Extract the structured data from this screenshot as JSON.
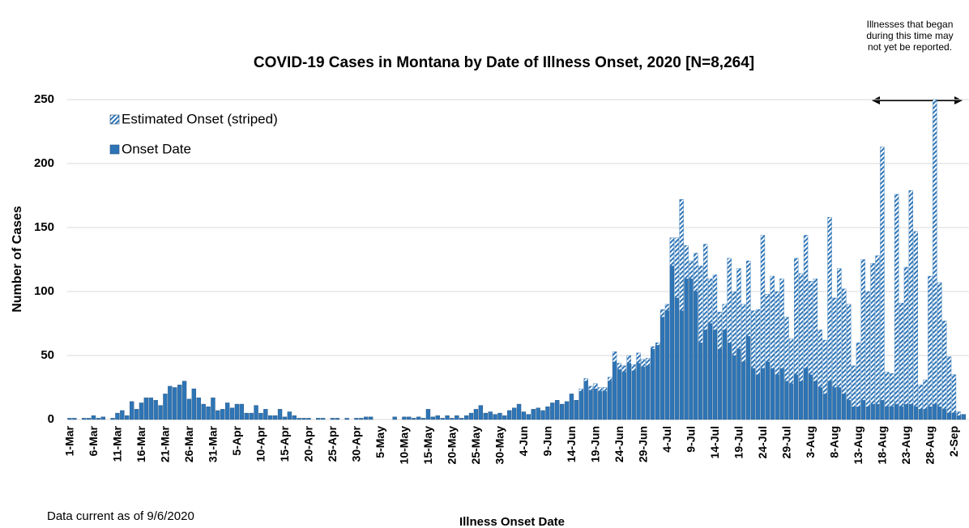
{
  "chart_data": {
    "type": "stacked-bar",
    "title": "COVID-19 Cases in Montana by Date of Illness Onset, 2020 [N=8,264]",
    "x_label": "Illness Onset Date",
    "y_label": "Number of Cases",
    "footnote": "Data current as of 9/6/2020",
    "annotation": [
      "Illnesses that began",
      "during this time may",
      "not yet be reported."
    ],
    "ylim": [
      0,
      250
    ],
    "yticks": [
      0,
      50,
      100,
      150,
      200,
      250
    ],
    "grid": true,
    "legend": "upper-left",
    "categories": [
      "1-Mar",
      null,
      null,
      null,
      null,
      "6-Mar",
      null,
      null,
      null,
      null,
      "11-Mar",
      null,
      null,
      null,
      null,
      "16-Mar",
      null,
      null,
      null,
      null,
      "21-Mar",
      null,
      null,
      null,
      null,
      "26-Mar",
      null,
      null,
      null,
      null,
      "31-Mar",
      null,
      null,
      null,
      null,
      "5-Apr",
      null,
      null,
      null,
      null,
      "10-Apr",
      null,
      null,
      null,
      null,
      "15-Apr",
      null,
      null,
      null,
      null,
      "20-Apr",
      null,
      null,
      null,
      null,
      "25-Apr",
      null,
      null,
      null,
      null,
      "30-Apr",
      null,
      null,
      null,
      null,
      "5-May",
      null,
      null,
      null,
      null,
      "10-May",
      null,
      null,
      null,
      null,
      "15-May",
      null,
      null,
      null,
      null,
      "20-May",
      null,
      null,
      null,
      null,
      "25-May",
      null,
      null,
      null,
      null,
      "30-May",
      null,
      null,
      null,
      null,
      "4-Jun",
      null,
      null,
      null,
      null,
      "9-Jun",
      null,
      null,
      null,
      null,
      "14-Jun",
      null,
      null,
      null,
      null,
      "19-Jun",
      null,
      null,
      null,
      null,
      "24-Jun",
      null,
      null,
      null,
      null,
      "29-Jun",
      null,
      null,
      null,
      null,
      "4-Jul",
      null,
      null,
      null,
      null,
      "9-Jul",
      null,
      null,
      null,
      null,
      "14-Jul",
      null,
      null,
      null,
      null,
      "19-Jul",
      null,
      null,
      null,
      null,
      "24-Jul",
      null,
      null,
      null,
      null,
      "29-Jul",
      null,
      null,
      null,
      null,
      "3-Aug",
      null,
      null,
      null,
      null,
      "8-Aug",
      null,
      null,
      null,
      null,
      "13-Aug",
      null,
      null,
      null,
      null,
      "18-Aug",
      null,
      null,
      null,
      null,
      "23-Aug",
      null,
      null,
      null,
      null,
      "28-Aug",
      null,
      null,
      null,
      null,
      "2-Sep",
      null,
      null
    ],
    "series": [
      {
        "name": "Onset Date",
        "color": "#2e75b6",
        "values": [
          1,
          1,
          0,
          1,
          1,
          3,
          1,
          2,
          0,
          1,
          5,
          7,
          3,
          14,
          8,
          13,
          17,
          17,
          15,
          11,
          20,
          26,
          25,
          27,
          30,
          16,
          24,
          17,
          12,
          10,
          17,
          7,
          8,
          13,
          9,
          12,
          12,
          5,
          5,
          11,
          5,
          8,
          3,
          3,
          8,
          2,
          6,
          3,
          1,
          1,
          1,
          0,
          1,
          1,
          0,
          1,
          1,
          0,
          1,
          0,
          1,
          1,
          2,
          2,
          0,
          0,
          0,
          0,
          2,
          0,
          2,
          2,
          1,
          2,
          1,
          8,
          2,
          3,
          1,
          3,
          1,
          3,
          1,
          3,
          5,
          8,
          11,
          5,
          6,
          4,
          5,
          3,
          7,
          9,
          12,
          6,
          4,
          8,
          9,
          7,
          10,
          13,
          15,
          12,
          14,
          20,
          15,
          22,
          30,
          23,
          24,
          22,
          22,
          30,
          45,
          39,
          37,
          44,
          38,
          44,
          41,
          42,
          55,
          58,
          80,
          85,
          120,
          95,
          85,
          110,
          110,
          100,
          60,
          70,
          75,
          70,
          55,
          70,
          60,
          50,
          55,
          45,
          65,
          40,
          35,
          40,
          45,
          40,
          35,
          40,
          30,
          28,
          35,
          30,
          40,
          35,
          30,
          25,
          20,
          30,
          25,
          25,
          20,
          15,
          10,
          10,
          15,
          10,
          12,
          12,
          15,
          10,
          10,
          12,
          10,
          12,
          12,
          10,
          8,
          8,
          10,
          12,
          10,
          8,
          5,
          5,
          3,
          4
        ]
      },
      {
        "name": "Estimated Onset (striped)",
        "color": "#2e75b6",
        "values": [
          0,
          0,
          0,
          0,
          0,
          0,
          0,
          0,
          0,
          0,
          0,
          0,
          0,
          0,
          0,
          0,
          0,
          0,
          0,
          0,
          0,
          0,
          0,
          0,
          0,
          0,
          0,
          0,
          0,
          0,
          0,
          0,
          0,
          0,
          0,
          0,
          0,
          0,
          0,
          0,
          0,
          0,
          0,
          0,
          0,
          0,
          0,
          0,
          0,
          0,
          0,
          0,
          0,
          0,
          0,
          0,
          0,
          0,
          0,
          0,
          0,
          0,
          0,
          0,
          0,
          0,
          0,
          0,
          0,
          0,
          0,
          0,
          0,
          0,
          0,
          0,
          0,
          0,
          0,
          0,
          0,
          0,
          0,
          0,
          0,
          0,
          0,
          0,
          0,
          0,
          0,
          0,
          0,
          0,
          0,
          0,
          0,
          0,
          0,
          0,
          0,
          0,
          0,
          0,
          0,
          0,
          0,
          2,
          2,
          3,
          4,
          3,
          3,
          3,
          8,
          5,
          5,
          6,
          5,
          8,
          6,
          6,
          2,
          2,
          6,
          5,
          22,
          47,
          87,
          26,
          14,
          30,
          60,
          67,
          35,
          43,
          29,
          20,
          66,
          50,
          63,
          45,
          59,
          45,
          51,
          104,
          53,
          72,
          65,
          70,
          50,
          35,
          91,
          84,
          104,
          73,
          80,
          45,
          42,
          128,
          70,
          93,
          82,
          75,
          32,
          50,
          110,
          90,
          110,
          116,
          198,
          27,
          26,
          164,
          81,
          107,
          167,
          137,
          19,
          23,
          102,
          238,
          97,
          69,
          44,
          30,
          3,
          0
        ]
      }
    ]
  }
}
